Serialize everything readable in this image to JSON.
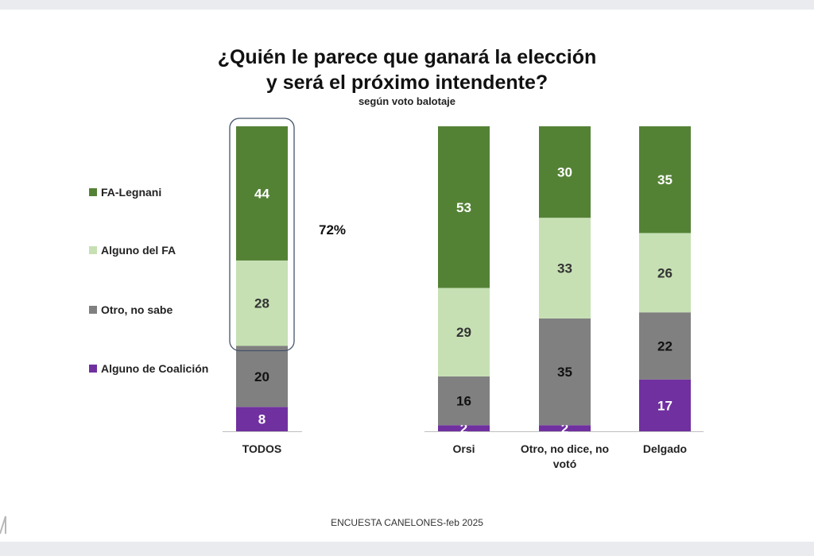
{
  "chart_data": {
    "type": "bar",
    "stacked": true,
    "title_line1": "¿Quién le parece que ganará la elección",
    "title_line2": "y será el próximo intendente?",
    "subtitle": "según voto balotaje",
    "categories": [
      "TODOS",
      "Orsi",
      "Otro, no dice, no votó",
      "Delgado"
    ],
    "category_lines": [
      [
        "TODOS"
      ],
      [
        "Orsi"
      ],
      [
        "Otro, no dice, no",
        "votó"
      ],
      [
        "Delgado"
      ]
    ],
    "series": [
      {
        "name": "Alguno de Coalición",
        "color": "#7030a0",
        "label_color": "#ffffff",
        "values": [
          8,
          2,
          2,
          17
        ]
      },
      {
        "name": "Otro, no sabe",
        "color": "#808080",
        "label_color": "#111111",
        "values": [
          20,
          16,
          35,
          22
        ]
      },
      {
        "name": "Alguno del FA",
        "color": "#c6e0b4",
        "label_color": "#333333",
        "values": [
          28,
          29,
          33,
          26
        ]
      },
      {
        "name": "FA-Legnani",
        "color": "#548235",
        "label_color": "#ffffff",
        "values": [
          44,
          53,
          30,
          35
        ]
      }
    ],
    "legend_order": [
      "FA-Legnani",
      "Alguno del FA",
      "Otro, no sabe",
      "Alguno de Coalición"
    ],
    "ylim": [
      0,
      100
    ],
    "highlight": {
      "category": "TODOS",
      "series": [
        "FA-Legnani",
        "Alguno del FA"
      ],
      "label": "72%"
    },
    "source": "ENCUESTA CANELONES-feb 2025"
  }
}
